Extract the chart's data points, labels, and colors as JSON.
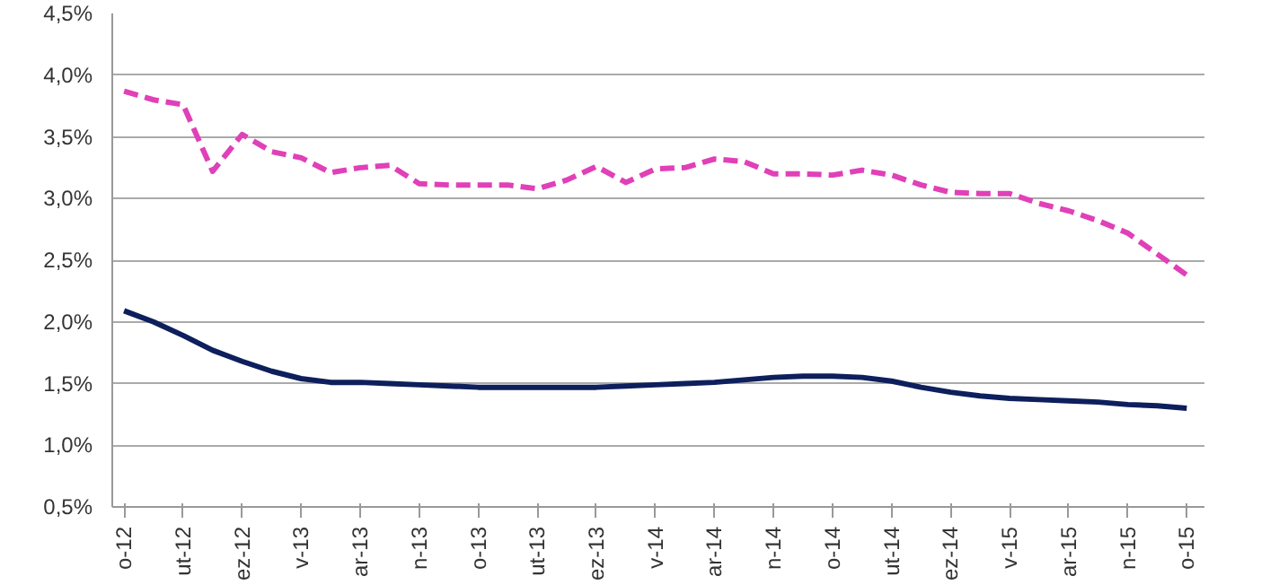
{
  "chart_data": {
    "type": "line",
    "categories": [
      "o-12",
      null,
      "ut-12",
      null,
      "ez-12",
      null,
      "v-13",
      null,
      "ar-13",
      null,
      "n-13",
      null,
      "o-13",
      null,
      "ut-13",
      null,
      "ez-13",
      null,
      "v-14",
      null,
      "ar-14",
      null,
      "n-14",
      null,
      "o-14",
      null,
      "ut-14",
      null,
      "ez-14",
      null,
      "v-15",
      null,
      "ar-15",
      null,
      "n-15",
      null,
      "o-15"
    ],
    "series": [
      {
        "color": "#e040b8",
        "line_style": "dashed",
        "values": [
          3.87,
          3.8,
          3.76,
          3.22,
          3.52,
          3.38,
          3.33,
          3.21,
          3.25,
          3.27,
          3.12,
          3.11,
          3.11,
          3.11,
          3.08,
          3.15,
          3.26,
          3.13,
          3.24,
          3.25,
          3.32,
          3.3,
          3.2,
          3.2,
          3.19,
          3.23,
          3.19,
          3.11,
          3.05,
          3.04,
          3.04,
          2.96,
          2.9,
          2.82,
          2.72,
          2.55,
          2.38
        ]
      },
      {
        "color": "#0d1f5c",
        "line_style": "solid",
        "values": [
          2.09,
          2.0,
          1.89,
          1.77,
          1.68,
          1.6,
          1.54,
          1.51,
          1.51,
          1.5,
          1.49,
          1.48,
          1.47,
          1.47,
          1.47,
          1.47,
          1.47,
          1.48,
          1.49,
          1.5,
          1.51,
          1.53,
          1.55,
          1.56,
          1.56,
          1.55,
          1.52,
          1.47,
          1.43,
          1.4,
          1.38,
          1.37,
          1.36,
          1.35,
          1.33,
          1.32,
          1.3
        ]
      }
    ],
    "ylim": [
      0.5,
      4.5
    ],
    "yticks": [
      {
        "value": 0.5,
        "label": "0,5%"
      },
      {
        "value": 1.0,
        "label": "1,0%"
      },
      {
        "value": 1.5,
        "label": "1,5%"
      },
      {
        "value": 2.0,
        "label": "2,0%"
      },
      {
        "value": 2.5,
        "label": "2,5%"
      },
      {
        "value": 3.0,
        "label": "3,0%"
      },
      {
        "value": 3.5,
        "label": "3,5%"
      },
      {
        "value": 4.0,
        "label": "4,0%"
      },
      {
        "value": 4.5,
        "label": "4,5%"
      }
    ],
    "grid": "y",
    "marker": "none"
  }
}
